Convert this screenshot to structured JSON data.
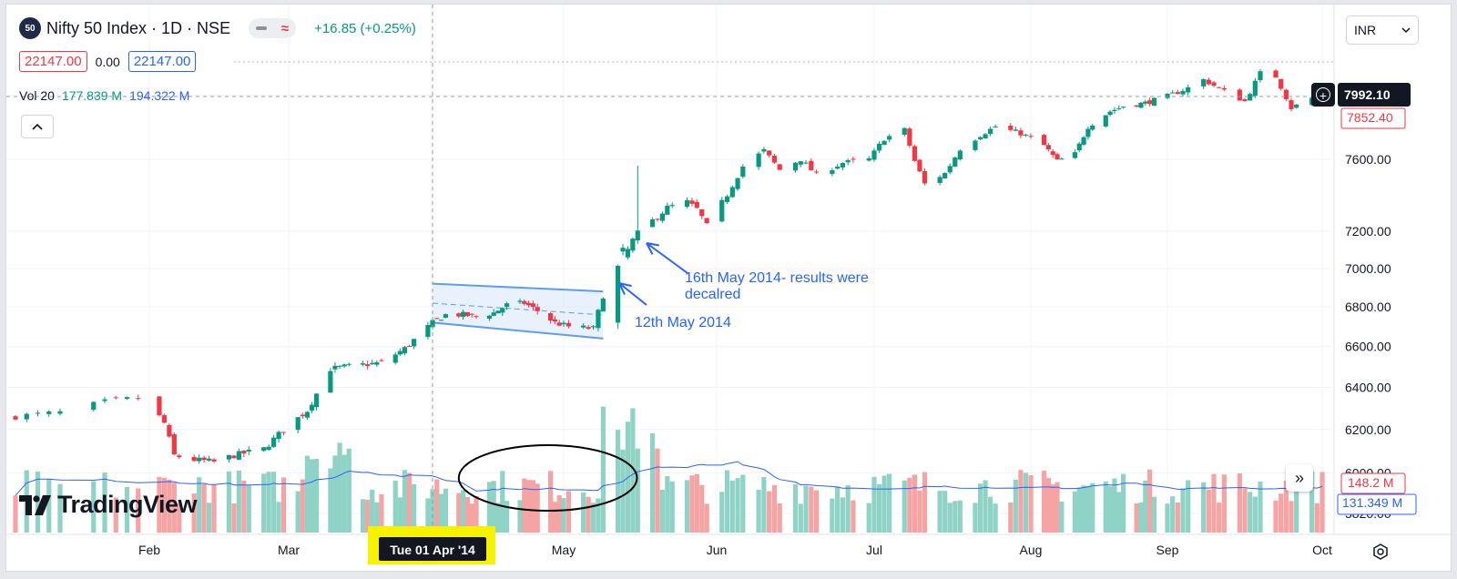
{
  "header": {
    "symbol_badge": "50",
    "title": "Nifty 50 Index · 1D · NSE",
    "change": "+16.85 (+0.25%)",
    "bid": "22147.00",
    "spread": "0.00",
    "ask": "22147.00",
    "currency": "INR"
  },
  "volume_legend": {
    "label": "Vol 20",
    "value1": "177.839 M",
    "value2": "194.322 M"
  },
  "brand": {
    "name": "TradingView"
  },
  "price_tags": {
    "crosshair": "7992.10",
    "last": "7852.40",
    "volume": "148.2 M",
    "volume_ma": "131.349 M"
  },
  "crosshair_date": "Tue 01 Apr '14",
  "icons": {
    "collapse": "chevron-up-icon",
    "currency_dropdown": "chevron-down-icon",
    "add": "plus-circle-icon",
    "scroll": "double-chevron-right-icon",
    "settings": "gear-icon"
  },
  "colors": {
    "up": "#089981",
    "down": "#f23645",
    "volume_up": "#8fd3c7",
    "volume_down": "#f5a3a3",
    "volume_ma": "#2962ff",
    "annotation": "#2962ff",
    "highlight": "#f7f200",
    "channel_fill": "#dce9fb"
  },
  "annotations": [
    {
      "text": [
        "16th May 2014- results were",
        "decalred"
      ]
    },
    {
      "text": [
        "12th May 2014"
      ]
    }
  ],
  "chart_data": {
    "type": "candlestick",
    "x_axis": {
      "tick_labels": [
        "Feb",
        "Mar",
        "Apr",
        "May",
        "Jun",
        "Jul",
        "Aug",
        "Sep",
        "Oct"
      ],
      "crosshair_label": "Tue 01 Apr '14"
    },
    "y_axis": {
      "tick_labels": [
        "7600.00",
        "7200.00",
        "7000.00",
        "6800.00",
        "6600.00",
        "6400.00",
        "6200.00",
        "6000.00",
        "5820.00"
      ],
      "scale": "log",
      "range": [
        5800,
        8000
      ]
    },
    "price_series": {
      "start_date": "2014-01-20",
      "end_date": "2014-10-01",
      "close_path": [
        [
          "2014-01-20",
          6262
        ],
        [
          "2014-01-24",
          6280
        ],
        [
          "2014-01-28",
          6330
        ],
        [
          "2014-01-31",
          6350
        ],
        [
          "2014-02-04",
          6230
        ],
        [
          "2014-02-06",
          6080
        ],
        [
          "2014-02-10",
          6060
        ],
        [
          "2014-02-14",
          6050
        ],
        [
          "2014-02-18",
          6080
        ],
        [
          "2014-02-24",
          6110
        ],
        [
          "2014-02-28",
          6200
        ],
        [
          "2014-03-05",
          6290
        ],
        [
          "2014-03-10",
          6490
        ],
        [
          "2014-03-13",
          6500
        ],
        [
          "2014-03-17",
          6510
        ],
        [
          "2014-03-21",
          6520
        ],
        [
          "2014-03-26",
          6590
        ],
        [
          "2014-04-01",
          6720
        ],
        [
          "2014-04-04",
          6760
        ],
        [
          "2014-04-08",
          6760
        ],
        [
          "2014-04-11",
          6750
        ],
        [
          "2014-04-15",
          6770
        ],
        [
          "2014-04-18",
          6810
        ],
        [
          "2014-04-22",
          6820
        ],
        [
          "2014-04-25",
          6780
        ],
        [
          "2014-04-29",
          6720
        ],
        [
          "2014-05-02",
          6700
        ],
        [
          "2014-05-07",
          6690
        ],
        [
          "2014-05-09",
          6858
        ],
        [
          "2014-05-12",
          7014
        ],
        [
          "2014-05-14",
          7100
        ],
        [
          "2014-05-16",
          7203
        ],
        [
          "2014-05-20",
          7276
        ],
        [
          "2014-05-22",
          7330
        ],
        [
          "2014-05-26",
          7360
        ],
        [
          "2014-05-28",
          7320
        ],
        [
          "2014-05-30",
          7230
        ],
        [
          "2014-06-03",
          7400
        ],
        [
          "2014-06-06",
          7560
        ],
        [
          "2014-06-10",
          7650
        ],
        [
          "2014-06-13",
          7540
        ],
        [
          "2014-06-17",
          7600
        ],
        [
          "2014-06-20",
          7510
        ],
        [
          "2014-06-25",
          7580
        ],
        [
          "2014-06-30",
          7600
        ],
        [
          "2014-07-03",
          7720
        ],
        [
          "2014-07-07",
          7770
        ],
        [
          "2014-07-09",
          7590
        ],
        [
          "2014-07-11",
          7460
        ],
        [
          "2014-07-15",
          7520
        ],
        [
          "2014-07-18",
          7660
        ],
        [
          "2014-07-22",
          7740
        ],
        [
          "2014-07-25",
          7790
        ],
        [
          "2014-07-30",
          7750
        ],
        [
          "2014-08-04",
          7680
        ],
        [
          "2014-08-07",
          7590
        ],
        [
          "2014-08-11",
          7630
        ],
        [
          "2014-08-14",
          7790
        ],
        [
          "2014-08-19",
          7880
        ],
        [
          "2014-08-22",
          7910
        ],
        [
          "2014-08-27",
          7930
        ],
        [
          "2014-09-01",
          7970
        ],
        [
          "2014-09-05",
          8020
        ],
        [
          "2014-09-08",
          8070
        ],
        [
          "2014-09-12",
          8000
        ],
        [
          "2014-09-16",
          7940
        ],
        [
          "2014-09-19",
          8110
        ],
        [
          "2014-09-22",
          8090
        ],
        [
          "2014-09-25",
          7900
        ],
        [
          "2014-09-29",
          7960
        ],
        [
          "2014-10-01",
          7950
        ]
      ]
    },
    "volume": {
      "ma_period": 20
    },
    "horizontal_lines": [
      {
        "name": "crosshair",
        "value": 7992.1
      },
      {
        "name": "last",
        "value": 7852.4
      }
    ],
    "channel": {
      "from": "2014-04-01",
      "to": "2014-05-09",
      "upper": [
        6920,
        6880
      ],
      "lower": [
        6720,
        6640
      ]
    },
    "ellipse_period": [
      "2014-04-17",
      "2014-05-07"
    ]
  }
}
